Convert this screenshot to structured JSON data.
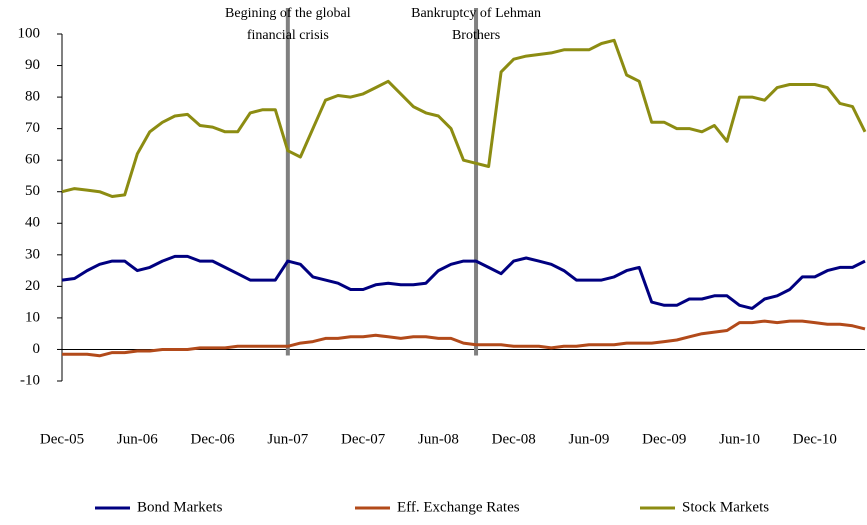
{
  "chart_data": {
    "type": "line",
    "categories": [
      "Dec-05",
      null,
      null,
      null,
      null,
      null,
      "Jun-06",
      null,
      null,
      null,
      null,
      null,
      "Dec-06",
      null,
      null,
      null,
      null,
      null,
      "Jun-07",
      null,
      null,
      null,
      null,
      null,
      "Dec-07",
      null,
      null,
      null,
      null,
      null,
      "Jun-08",
      null,
      null,
      null,
      null,
      null,
      "Dec-08",
      null,
      null,
      null,
      null,
      null,
      "Jun-09",
      null,
      null,
      null,
      null,
      null,
      "Dec-09",
      null,
      null,
      null,
      null,
      null,
      "Jun-10",
      null,
      null,
      null,
      null,
      null,
      "Dec-10",
      null,
      null,
      null,
      null
    ],
    "series": [
      {
        "name": "Bond Markets",
        "color": "#000080",
        "values": [
          22,
          22.5,
          25,
          27,
          28,
          28,
          25,
          26,
          28,
          29.5,
          29.5,
          28,
          28,
          26,
          24,
          22,
          22,
          22,
          28,
          27,
          23,
          22,
          21,
          19,
          19,
          20.5,
          21,
          20.5,
          20.5,
          21,
          25,
          27,
          28,
          28,
          26,
          24,
          28,
          29,
          28,
          27,
          25,
          22,
          22,
          22,
          23,
          25,
          26,
          15,
          14,
          14,
          16,
          16,
          17,
          17,
          14,
          13,
          16,
          17,
          19,
          23,
          23,
          25,
          26,
          26,
          28
        ]
      },
      {
        "name": "Eff. Exchange Rates",
        "color": "#b24a1a",
        "values": [
          -1.5,
          -1.5,
          -1.5,
          -2,
          -1,
          -1,
          -0.5,
          -0.5,
          0,
          0,
          0,
          0.5,
          0.5,
          0.5,
          1,
          1,
          1,
          1,
          1,
          2,
          2.5,
          3.5,
          3.5,
          4,
          4,
          4.5,
          4,
          3.5,
          4,
          4,
          3.5,
          3.5,
          2,
          1.5,
          1.5,
          1.5,
          1,
          1,
          1,
          0.5,
          1,
          1,
          1.5,
          1.5,
          1.5,
          2,
          2,
          2,
          2.5,
          3,
          4,
          5,
          5.5,
          6,
          8.5,
          8.5,
          9,
          8.5,
          9,
          9,
          8.5,
          8,
          8,
          7.5,
          6.5
        ]
      },
      {
        "name": "Stock Markets",
        "color": "#8c8c12",
        "values": [
          50,
          51,
          50.5,
          50,
          48.5,
          49,
          62,
          69,
          72,
          74,
          74.5,
          71,
          70.5,
          69,
          69,
          75,
          76,
          76,
          63,
          61,
          70,
          79,
          80.5,
          80,
          81,
          83,
          85,
          81,
          77,
          75,
          74,
          70,
          60,
          59,
          58,
          88,
          92,
          93,
          93.5,
          94,
          95,
          95,
          95,
          97,
          98,
          87,
          85,
          72,
          72,
          70,
          70,
          69,
          71,
          66,
          80,
          80,
          79,
          83,
          84,
          84,
          84,
          83,
          78,
          77,
          69
        ]
      }
    ],
    "ylim": [
      -10,
      100
    ],
    "yticks": [
      -10,
      0,
      10,
      20,
      30,
      40,
      50,
      60,
      70,
      80,
      90,
      100
    ],
    "annotations": [
      {
        "lines": [
          "Begining of the global",
          "financial crisis"
        ],
        "index": 18
      },
      {
        "lines": [
          "Bankruptcy of Lehman",
          "Brothers"
        ],
        "index": 33
      }
    ],
    "legend": "bottom"
  }
}
